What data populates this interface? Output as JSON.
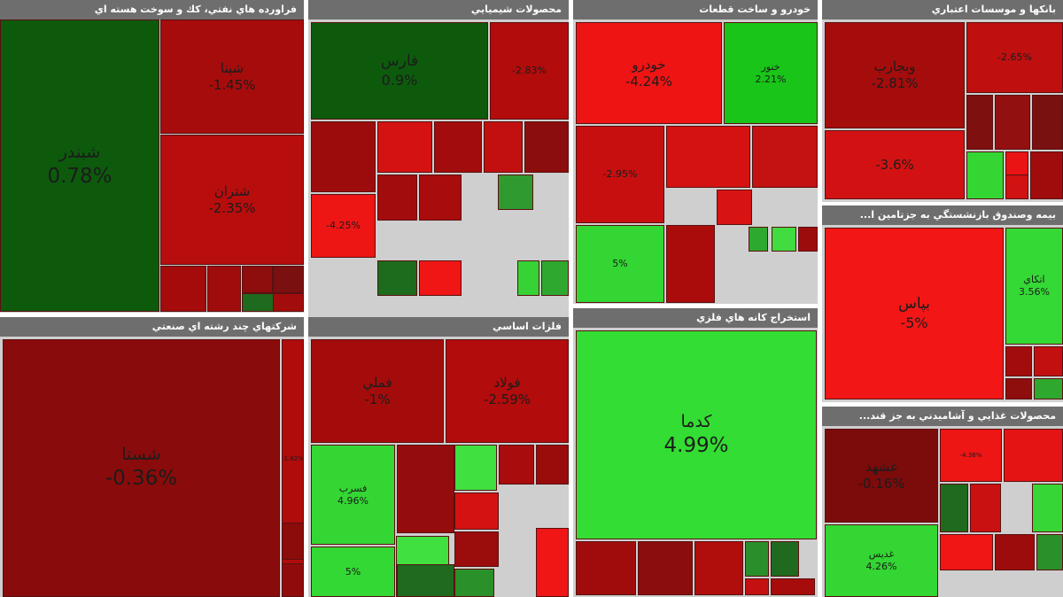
{
  "chart_data": {
    "type": "treemap",
    "title": "",
    "sectors": [
      {
        "name": "فراورده هاي نفتي، كك و سوخت هسته اي",
        "tiles": [
          {
            "symbol": "شبندر",
            "change": "0.78%",
            "color": "#0d5a0d",
            "size": "xl"
          },
          {
            "symbol": "شپنا",
            "change": "-1.45%",
            "color": "#a70c0c",
            "size": "m"
          },
          {
            "symbol": "شتران",
            "change": "-2.35%",
            "color": "#b80d0d",
            "size": "m"
          },
          {
            "symbol": "",
            "change": "",
            "color": "#a50b0b",
            "size": "xs"
          },
          {
            "symbol": "",
            "change": "",
            "color": "#a00c0c",
            "size": "xs"
          },
          {
            "symbol": "",
            "change": "",
            "color": "#8e0d0d",
            "size": "xs"
          },
          {
            "symbol": "",
            "change": "",
            "color": "#7a1010",
            "size": "xs"
          },
          {
            "symbol": "",
            "change": "",
            "color": "#1e6a1e",
            "size": "xs"
          },
          {
            "symbol": "",
            "change": "",
            "color": "#a30c0c",
            "size": "xs"
          }
        ]
      },
      {
        "name": "محصولات شيميايي",
        "tiles": [
          {
            "symbol": "فارس",
            "change": "0.9%",
            "color": "#0d5a0d",
            "size": "l"
          },
          {
            "symbol": "",
            "change": "-2.83%",
            "color": "#b30c0c",
            "size": "s"
          },
          {
            "symbol": "",
            "change": "",
            "color": "#9d0c0c",
            "size": "xs"
          },
          {
            "symbol": "",
            "change": "",
            "color": "#d41212",
            "size": "xs"
          },
          {
            "symbol": "",
            "change": "",
            "color": "#a30c0c",
            "size": "xs"
          },
          {
            "symbol": "",
            "change": "",
            "color": "#c21010",
            "size": "xs"
          },
          {
            "symbol": "",
            "change": "",
            "color": "#8c0d0d",
            "size": "xs"
          },
          {
            "symbol": "",
            "change": "-4.25%",
            "color": "#ee1515",
            "size": "s"
          },
          {
            "symbol": "",
            "change": "",
            "color": "#a30c0c",
            "size": "xs"
          },
          {
            "symbol": "",
            "change": "",
            "color": "#a80c0c",
            "size": "xs"
          },
          {
            "symbol": "",
            "change": "",
            "color": "#2f9a2f",
            "size": "xs"
          },
          {
            "symbol": "",
            "change": "",
            "color": "#1d6b1d",
            "size": "xs"
          },
          {
            "symbol": "",
            "change": "",
            "color": "#f01616",
            "size": "xs"
          },
          {
            "symbol": "",
            "change": "",
            "color": "#36d236",
            "size": "xs"
          },
          {
            "symbol": "",
            "change": "",
            "color": "#2fa82f",
            "size": "xs"
          }
        ]
      },
      {
        "name": "خودرو و ساخت قطعات",
        "tiles": [
          {
            "symbol": "خودرو",
            "change": "-4.24%",
            "color": "#ee1414",
            "size": "m"
          },
          {
            "symbol": "خنور",
            "change": "2.21%",
            "color": "#18c518",
            "size": "s"
          },
          {
            "symbol": "",
            "change": "-2.95%",
            "color": "#c70f0f",
            "size": "s"
          },
          {
            "symbol": "",
            "change": "",
            "color": "#d41212",
            "size": "xs"
          },
          {
            "symbol": "",
            "change": "",
            "color": "#c41111",
            "size": "xs"
          },
          {
            "symbol": "",
            "change": "5%",
            "color": "#33d633",
            "size": "s"
          },
          {
            "symbol": "",
            "change": "",
            "color": "#aa0c0c",
            "size": "xs"
          },
          {
            "symbol": "",
            "change": "",
            "color": "#d81313",
            "size": "xs"
          },
          {
            "symbol": "",
            "change": "",
            "color": "#2ea82e",
            "size": "xs"
          },
          {
            "symbol": "",
            "change": "",
            "color": "#40dc40",
            "size": "xs"
          },
          {
            "symbol": "",
            "change": "",
            "color": "#9d0c0c",
            "size": "xs"
          }
        ]
      },
      {
        "name": "بانكها و موسسات اعتباري",
        "tiles": [
          {
            "symbol": "وبجارب",
            "change": "-2.81%",
            "color": "#a50c0c",
            "size": "m"
          },
          {
            "symbol": "",
            "change": "-2.65%",
            "color": "#c00f0f",
            "size": "s"
          },
          {
            "symbol": "",
            "change": "-3.6%",
            "color": "#d21212",
            "size": "m"
          },
          {
            "symbol": "",
            "change": "",
            "color": "#7e1010",
            "size": "xs"
          },
          {
            "symbol": "",
            "change": "",
            "color": "#931010",
            "size": "xs"
          },
          {
            "symbol": "",
            "change": "",
            "color": "#7a1111",
            "size": "xs"
          },
          {
            "symbol": "",
            "change": "",
            "color": "#33d633",
            "size": "xs"
          },
          {
            "symbol": "",
            "change": "",
            "color": "#ea1414",
            "size": "xs"
          },
          {
            "symbol": "",
            "change": "",
            "color": "#a00c0c",
            "size": "xs"
          },
          {
            "symbol": "",
            "change": "",
            "color": "#d01212",
            "size": "xs"
          }
        ]
      },
      {
        "name": "بيمه وصندوق بازنشستگي به جزتامين ا...",
        "tiles": [
          {
            "symbol": "بپاس",
            "change": "-5%",
            "color": "#f21616",
            "size": "l"
          },
          {
            "symbol": "اتكاي",
            "change": "3.56%",
            "color": "#35d935",
            "size": "s"
          },
          {
            "symbol": "",
            "change": "",
            "color": "#a30c0c",
            "size": "xs"
          },
          {
            "symbol": "",
            "change": "",
            "color": "#c21010",
            "size": "xs"
          },
          {
            "symbol": "",
            "change": "",
            "color": "#8e0d0d",
            "size": "xs"
          },
          {
            "symbol": "",
            "change": "",
            "color": "#2ea82e",
            "size": "xs"
          },
          {
            "symbol": "",
            "change": "",
            "color": "#9b0c0c",
            "size": "xs"
          },
          {
            "symbol": "",
            "change": "",
            "color": "#2c9a2c",
            "size": "xs"
          }
        ]
      },
      {
        "name": "شركتهاي چند رشته اي صنعتي",
        "tiles": [
          {
            "symbol": "شستا",
            "change": "-0.36%",
            "color": "#8a0b0b",
            "size": "xl"
          },
          {
            "symbol": "",
            "change": "-1.82%",
            "color": "#b00c0c",
            "size": "xs"
          },
          {
            "symbol": "",
            "change": "",
            "color": "#8c0b0b",
            "size": "xs"
          },
          {
            "symbol": "",
            "change": "",
            "color": "#900c0c",
            "size": "xs"
          }
        ]
      },
      {
        "name": "فلزات اساسي",
        "tiles": [
          {
            "symbol": "فملي",
            "change": "-1%",
            "color": "#a40c0c",
            "size": "m"
          },
          {
            "symbol": "فولاد",
            "change": "-2.59%",
            "color": "#b20c0c",
            "size": "m"
          },
          {
            "symbol": "فسرب",
            "change": "4.96%",
            "color": "#33d633",
            "size": "s"
          },
          {
            "symbol": "",
            "change": "",
            "color": "#940c0c",
            "size": "xs"
          },
          {
            "symbol": "",
            "change": "",
            "color": "#40e040",
            "size": "xs"
          },
          {
            "symbol": "",
            "change": "",
            "color": "#a80c0c",
            "size": "xs"
          },
          {
            "symbol": "",
            "change": "",
            "color": "#9a0c0c",
            "size": "xs"
          },
          {
            "symbol": "",
            "change": "",
            "color": "#3fe03f",
            "size": "xs"
          },
          {
            "symbol": "",
            "change": "",
            "color": "#d41212",
            "size": "xs"
          },
          {
            "symbol": "",
            "change": "5%",
            "color": "#34d834",
            "size": "s"
          },
          {
            "symbol": "",
            "change": "",
            "color": "#1e6a1e",
            "size": "xs"
          },
          {
            "symbol": "",
            "change": "",
            "color": "#9b0c0c",
            "size": "xs"
          },
          {
            "symbol": "",
            "change": "",
            "color": "#2a902a",
            "size": "xs"
          },
          {
            "symbol": "",
            "change": "",
            "color": "#f01616",
            "size": "xs"
          }
        ]
      },
      {
        "name": "استخراج كانه هاي فلزي",
        "tiles": [
          {
            "symbol": "كدما",
            "change": "4.99%",
            "color": "#33dd33",
            "size": "xl"
          },
          {
            "symbol": "",
            "change": "",
            "color": "#a00c0c",
            "size": "xs"
          },
          {
            "symbol": "",
            "change": "",
            "color": "#8c0d0d",
            "size": "xs"
          },
          {
            "symbol": "",
            "change": "",
            "color": "#b00d0d",
            "size": "xs"
          },
          {
            "symbol": "",
            "change": "",
            "color": "#2a8f2a",
            "size": "xs"
          },
          {
            "symbol": "",
            "change": "",
            "color": "#1f6a1f",
            "size": "xs"
          },
          {
            "symbol": "",
            "change": "",
            "color": "#c41010",
            "size": "xs"
          },
          {
            "symbol": "",
            "change": "",
            "color": "#a70c0c",
            "size": "xs"
          }
        ]
      },
      {
        "name": "محصولات غذايي و آشاميدني به جز قند...",
        "tiles": [
          {
            "symbol": "غشهد",
            "change": "-0.16%",
            "color": "#7c0b0b",
            "size": "m"
          },
          {
            "symbol": "",
            "change": "-4.38%",
            "color": "#ee1515",
            "size": "xs"
          },
          {
            "symbol": "",
            "change": "",
            "color": "#e41414",
            "size": "xs"
          },
          {
            "symbol": "غدیس",
            "change": "4.26%",
            "color": "#33d633",
            "size": "s"
          },
          {
            "symbol": "",
            "change": "",
            "color": "#1e6a1e",
            "size": "xs"
          },
          {
            "symbol": "",
            "change": "",
            "color": "#c91111",
            "size": "xs"
          },
          {
            "symbol": "",
            "change": "",
            "color": "#36d636",
            "size": "xs"
          },
          {
            "symbol": "",
            "change": "",
            "color": "#f01616",
            "size": "xs"
          },
          {
            "symbol": "",
            "change": "",
            "color": "#9d0c0c",
            "size": "xs"
          },
          {
            "symbol": "",
            "change": "",
            "color": "#2a902a",
            "size": "xs"
          }
        ]
      }
    ]
  }
}
